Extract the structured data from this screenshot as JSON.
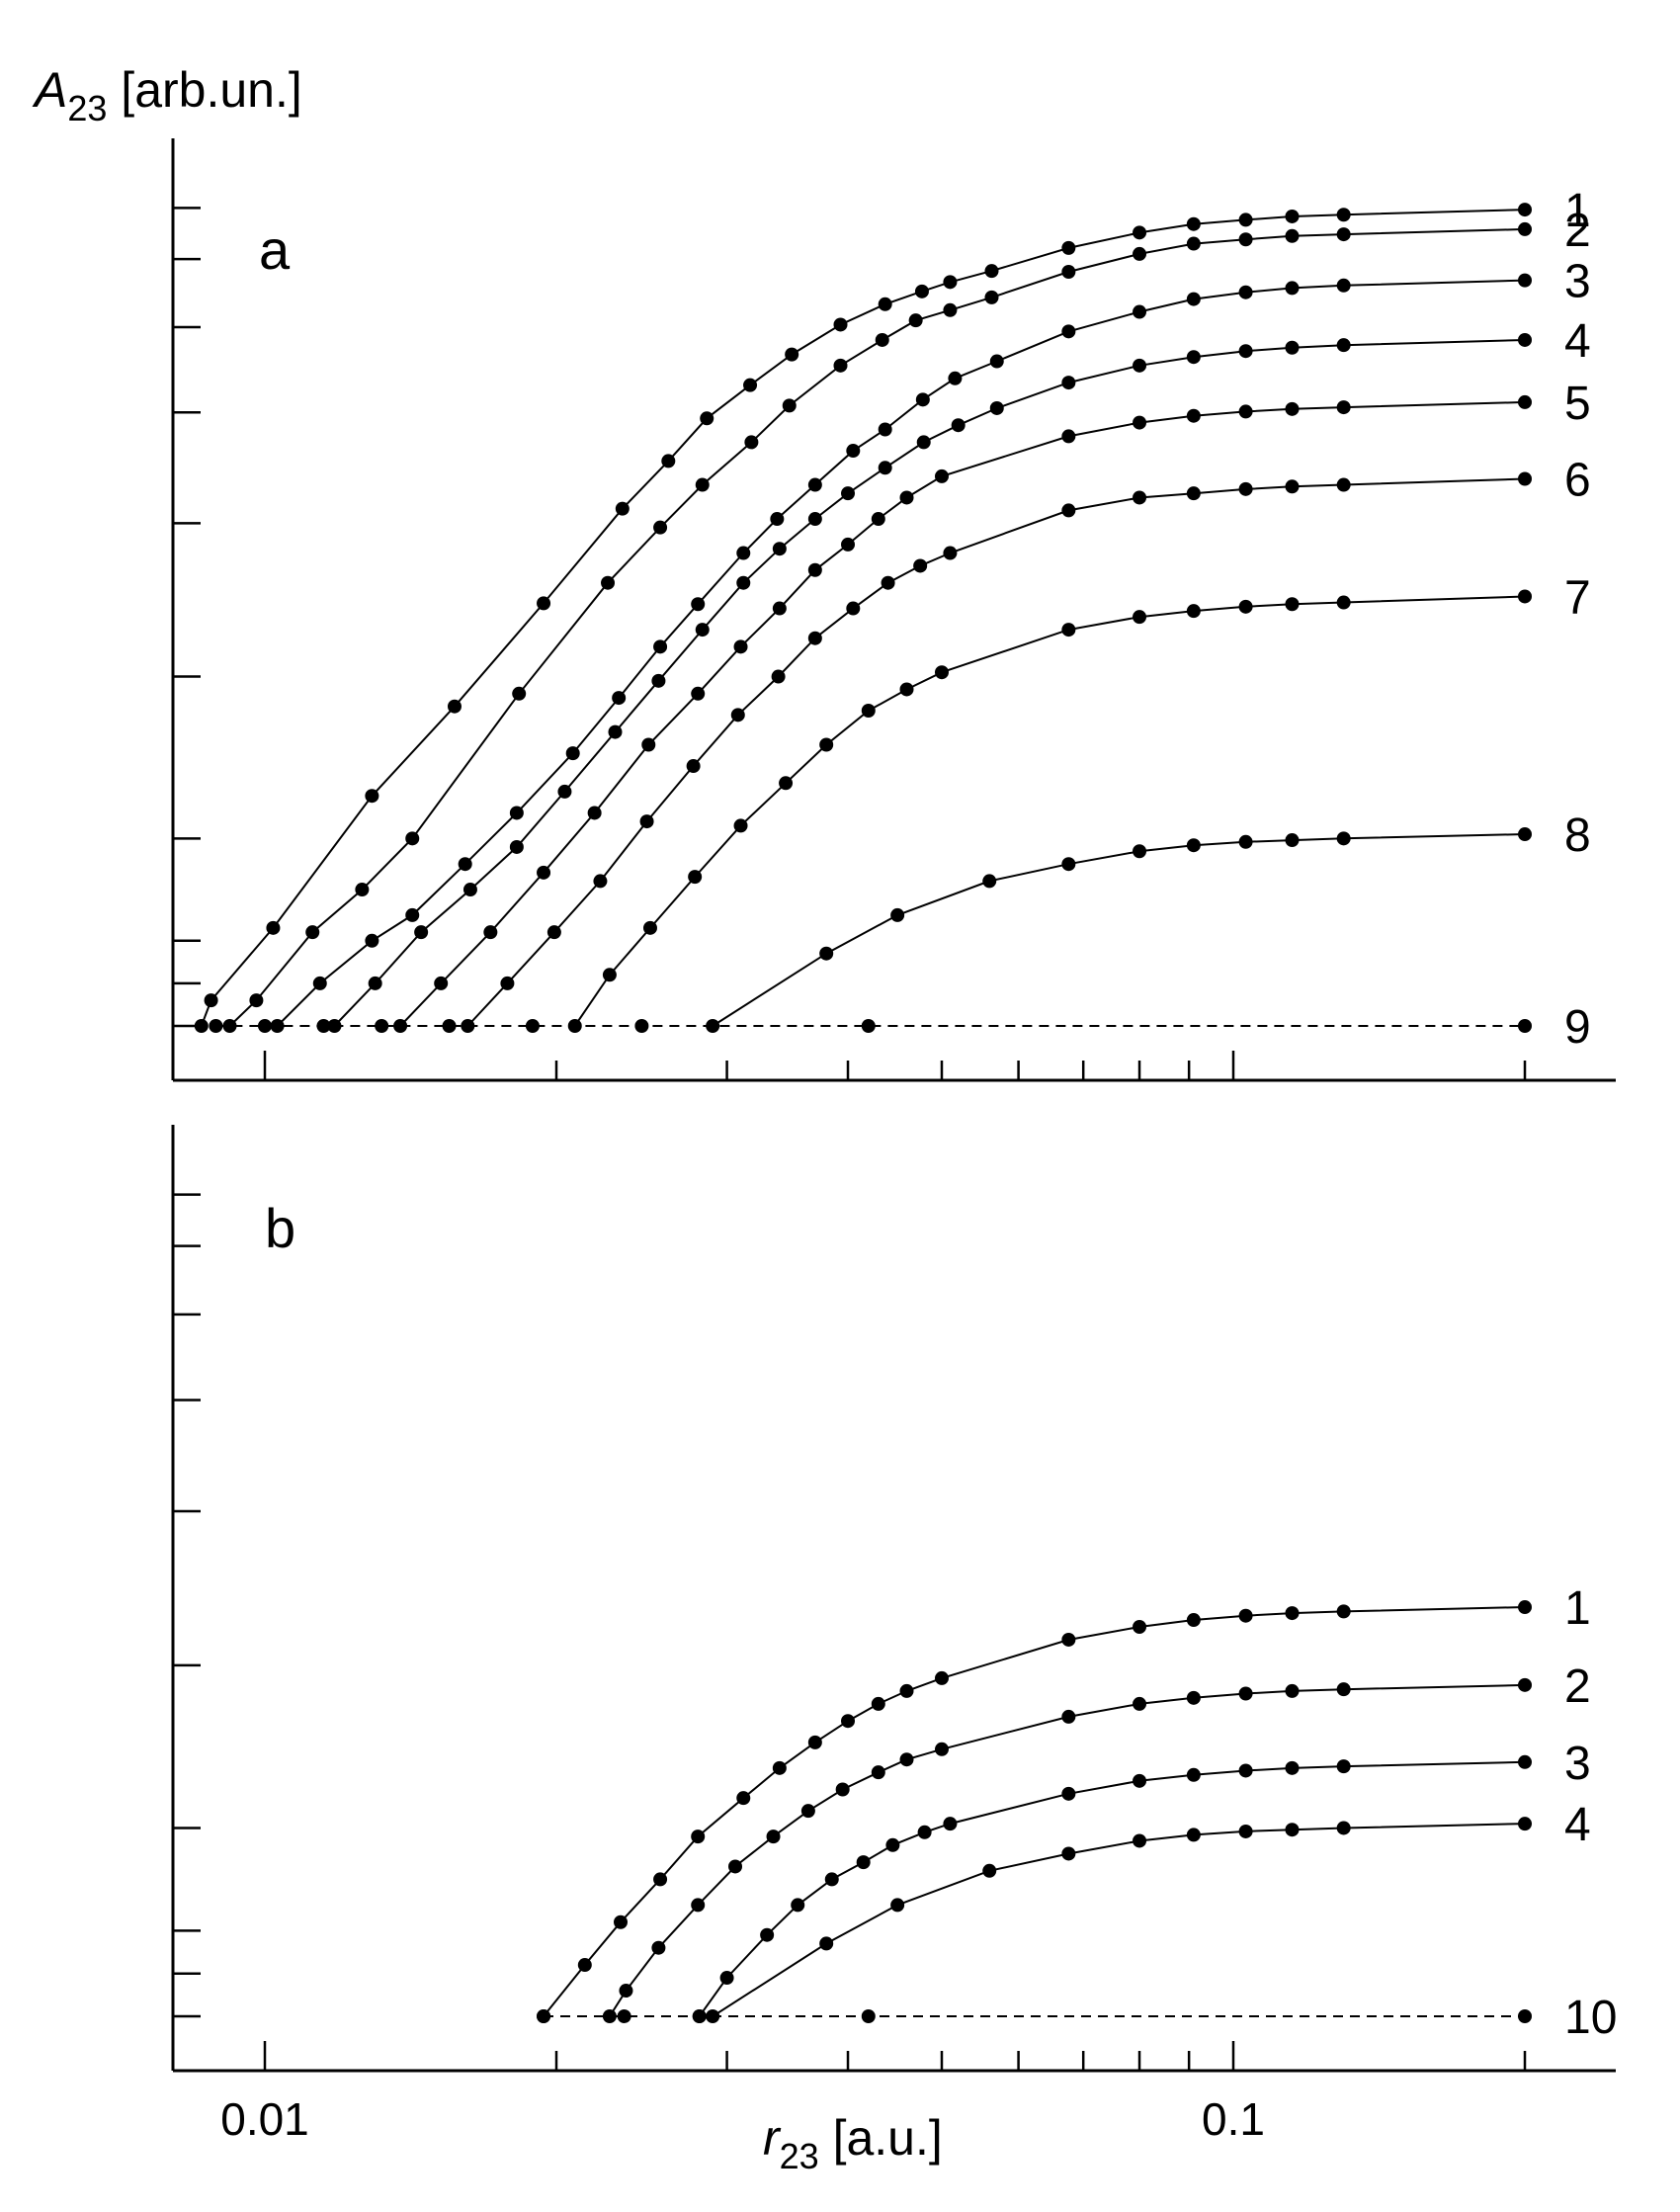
{
  "title": "",
  "ylabel": {
    "main": "A",
    "sub": "23",
    "unit": " [arb.un.]"
  },
  "xlabel": {
    "main": "r",
    "sub": "23",
    "unit": " [a.u.]"
  },
  "x_tick_labels": [
    "0.01",
    "0.1"
  ],
  "x_scale": "log",
  "xlim": [
    0.0085,
    0.31
  ],
  "grid": false,
  "legend": "none (curve numbers at right end of each curve)",
  "colors": {
    "line": "#000000",
    "marker": "#000000",
    "background": "#ffffff"
  },
  "chart_data": [
    {
      "type": "line",
      "panel_label": "a",
      "x_scale": "log",
      "ylim": [
        -0.6,
        10.3
      ],
      "y_ticks": [
        0,
        0.5,
        1,
        2.2,
        4.1,
        5.9,
        7.2,
        8.2,
        9,
        9.6
      ],
      "baseline": 0,
      "series": [
        {
          "name": "1",
          "x": [
            0.0086,
            0.0088,
            0.0102,
            0.0129,
            0.0157,
            0.0194,
            0.0234,
            0.0261,
            0.0286,
            0.0317,
            0.035,
            0.0393,
            0.0437,
            0.0477,
            0.051,
            0.0563,
            0.0676,
            0.08,
            0.091,
            0.103,
            0.115,
            0.13,
            0.2
          ],
          "y": [
            0.0,
            0.3,
            1.15,
            2.7,
            3.75,
            4.96,
            6.07,
            6.63,
            7.13,
            7.52,
            7.88,
            8.23,
            8.47,
            8.62,
            8.73,
            8.86,
            9.13,
            9.31,
            9.41,
            9.46,
            9.5,
            9.52,
            9.58
          ]
        },
        {
          "name": "2",
          "x": [
            0.0092,
            0.0098,
            0.0112,
            0.0126,
            0.0142,
            0.0183,
            0.0226,
            0.0256,
            0.0283,
            0.0318,
            0.0348,
            0.0393,
            0.0434,
            0.047,
            0.051,
            0.0563,
            0.0676,
            0.08,
            0.091,
            0.103,
            0.115,
            0.13,
            0.2
          ],
          "y": [
            0.0,
            0.3,
            1.1,
            1.6,
            2.2,
            3.9,
            5.2,
            5.85,
            6.35,
            6.85,
            7.28,
            7.75,
            8.05,
            8.28,
            8.4,
            8.55,
            8.85,
            9.06,
            9.18,
            9.23,
            9.27,
            9.29,
            9.35
          ]
        },
        {
          "name": "3",
          "x": [
            0.0103,
            0.0114,
            0.0129,
            0.0142,
            0.0161,
            0.0182,
            0.0208,
            0.0232,
            0.0256,
            0.028,
            0.0312,
            0.0338,
            0.037,
            0.0405,
            0.0437,
            0.0478,
            0.0516,
            0.057,
            0.0676,
            0.08,
            0.091,
            0.103,
            0.115,
            0.13,
            0.2
          ],
          "y": [
            0.0,
            0.5,
            1.0,
            1.3,
            1.9,
            2.5,
            3.2,
            3.85,
            4.45,
            4.95,
            5.55,
            5.95,
            6.35,
            6.75,
            7.0,
            7.35,
            7.6,
            7.8,
            8.15,
            8.38,
            8.53,
            8.61,
            8.66,
            8.69,
            8.75
          ]
        },
        {
          "name": "4",
          "x": [
            0.0118,
            0.013,
            0.0145,
            0.0163,
            0.0182,
            0.0204,
            0.023,
            0.0255,
            0.0283,
            0.0312,
            0.034,
            0.037,
            0.04,
            0.0437,
            0.0479,
            0.052,
            0.057,
            0.0676,
            0.08,
            0.091,
            0.103,
            0.115,
            0.13,
            0.2
          ],
          "y": [
            0.0,
            0.5,
            1.1,
            1.6,
            2.1,
            2.75,
            3.45,
            4.05,
            4.65,
            5.2,
            5.6,
            5.95,
            6.25,
            6.55,
            6.85,
            7.05,
            7.25,
            7.55,
            7.75,
            7.85,
            7.92,
            7.96,
            7.99,
            8.05
          ]
        },
        {
          "name": "5",
          "x": [
            0.0138,
            0.0152,
            0.0171,
            0.0194,
            0.0219,
            0.0249,
            0.028,
            0.031,
            0.034,
            0.037,
            0.04,
            0.043,
            0.046,
            0.05,
            0.0676,
            0.08,
            0.091,
            0.103,
            0.115,
            0.13,
            0.2
          ],
          "y": [
            0.0,
            0.5,
            1.1,
            1.8,
            2.5,
            3.3,
            3.9,
            4.45,
            4.9,
            5.35,
            5.65,
            5.95,
            6.2,
            6.45,
            6.92,
            7.08,
            7.16,
            7.21,
            7.24,
            7.26,
            7.32
          ]
        },
        {
          "name": "6",
          "x": [
            0.0162,
            0.0178,
            0.0199,
            0.0222,
            0.0248,
            0.0277,
            0.0308,
            0.0339,
            0.037,
            0.0405,
            0.044,
            0.0475,
            0.051,
            0.0676,
            0.08,
            0.091,
            0.103,
            0.115,
            0.13,
            0.2
          ],
          "y": [
            0.0,
            0.5,
            1.1,
            1.7,
            2.4,
            3.05,
            3.65,
            4.1,
            4.55,
            4.9,
            5.2,
            5.4,
            5.55,
            6.05,
            6.2,
            6.25,
            6.3,
            6.33,
            6.35,
            6.42
          ]
        },
        {
          "name": "7",
          "x": [
            0.0209,
            0.0227,
            0.025,
            0.0278,
            0.031,
            0.0345,
            0.038,
            0.042,
            0.046,
            0.05,
            0.0676,
            0.08,
            0.091,
            0.103,
            0.115,
            0.13,
            0.2
          ],
          "y": [
            0.0,
            0.6,
            1.15,
            1.75,
            2.35,
            2.85,
            3.3,
            3.7,
            3.95,
            4.15,
            4.65,
            4.8,
            4.87,
            4.92,
            4.95,
            4.97,
            5.04
          ]
        },
        {
          "name": "8",
          "x": [
            0.029,
            0.038,
            0.045,
            0.056,
            0.0676,
            0.08,
            0.091,
            0.103,
            0.115,
            0.13,
            0.2
          ],
          "y": [
            0.0,
            0.85,
            1.3,
            1.7,
            1.9,
            2.05,
            2.12,
            2.16,
            2.18,
            2.2,
            2.25
          ]
        },
        {
          "name": "9",
          "x": [
            0.0089,
            0.01,
            0.0115,
            0.0132,
            0.0155,
            0.0189,
            0.0245,
            0.042,
            0.2
          ],
          "y": [
            0,
            0,
            0,
            0,
            0,
            0,
            0,
            0,
            0
          ],
          "style": "dashed"
        }
      ]
    },
    {
      "type": "line",
      "panel_label": "b",
      "x_scale": "log",
      "ylim": [
        -0.6,
        10.3
      ],
      "y_ticks": [
        0,
        0.5,
        1,
        2.2,
        4.1,
        5.9,
        7.2,
        8.2,
        9,
        9.6
      ],
      "baseline": 0,
      "series": [
        {
          "name": "1",
          "x": [
            0.0194,
            0.0214,
            0.0233,
            0.0256,
            0.028,
            0.0312,
            0.034,
            0.037,
            0.04,
            0.043,
            0.046,
            0.05,
            0.0676,
            0.08,
            0.091,
            0.103,
            0.115,
            0.13,
            0.2
          ],
          "y": [
            0.0,
            0.6,
            1.1,
            1.6,
            2.1,
            2.55,
            2.9,
            3.2,
            3.45,
            3.65,
            3.8,
            3.95,
            4.4,
            4.55,
            4.63,
            4.68,
            4.71,
            4.73,
            4.78
          ]
        },
        {
          "name": "2",
          "x": [
            0.0227,
            0.0236,
            0.0255,
            0.028,
            0.0306,
            0.0335,
            0.0364,
            0.0395,
            0.043,
            0.046,
            0.05,
            0.0676,
            0.08,
            0.091,
            0.103,
            0.115,
            0.13,
            0.2
          ],
          "y": [
            0.0,
            0.3,
            0.8,
            1.3,
            1.75,
            2.1,
            2.4,
            2.65,
            2.85,
            3.0,
            3.12,
            3.5,
            3.65,
            3.72,
            3.77,
            3.8,
            3.82,
            3.87
          ]
        },
        {
          "name": "3",
          "x": [
            0.0281,
            0.03,
            0.033,
            0.0355,
            0.0385,
            0.0415,
            0.0445,
            0.048,
            0.051,
            0.0676,
            0.08,
            0.091,
            0.103,
            0.115,
            0.13,
            0.2
          ],
          "y": [
            0.0,
            0.45,
            0.95,
            1.3,
            1.6,
            1.8,
            2.0,
            2.15,
            2.25,
            2.6,
            2.75,
            2.82,
            2.87,
            2.9,
            2.92,
            2.97
          ]
        },
        {
          "name": "4",
          "x": [
            0.029,
            0.038,
            0.045,
            0.056,
            0.0676,
            0.08,
            0.091,
            0.103,
            0.115,
            0.13,
            0.2
          ],
          "y": [
            0.0,
            0.85,
            1.3,
            1.7,
            1.9,
            2.05,
            2.12,
            2.16,
            2.18,
            2.2,
            2.25
          ]
        },
        {
          "name": "10",
          "x": [
            0.0194,
            0.0235,
            0.0281,
            0.042,
            0.2
          ],
          "y": [
            0,
            0,
            0,
            0,
            0
          ],
          "style": "dashed"
        }
      ]
    }
  ]
}
